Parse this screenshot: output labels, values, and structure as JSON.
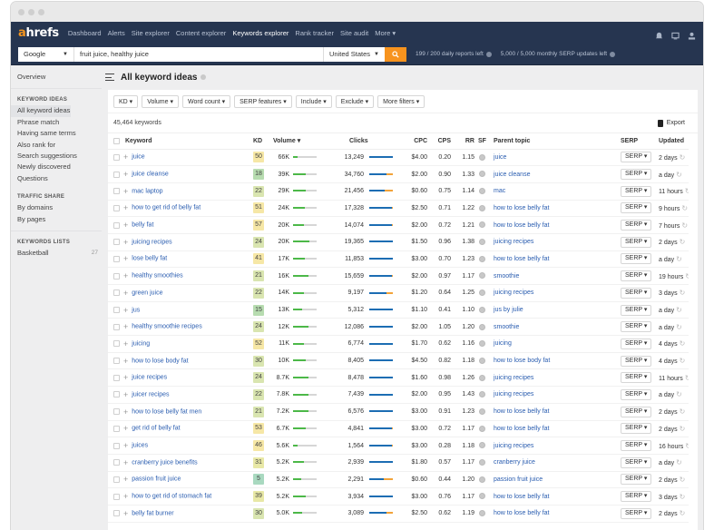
{
  "nav": {
    "logo_accent": "a",
    "logo_rest": "hrefs",
    "items": [
      {
        "label": "Dashboard",
        "active": false
      },
      {
        "label": "Alerts",
        "active": false
      },
      {
        "label": "Site explorer",
        "active": false
      },
      {
        "label": "Content explorer",
        "active": false
      },
      {
        "label": "Keywords explorer",
        "active": true
      },
      {
        "label": "Rank tracker",
        "active": false
      },
      {
        "label": "Site audit",
        "active": false
      },
      {
        "label": "More ▾",
        "active": false
      }
    ],
    "icons": [
      "bell-icon",
      "monitor-icon",
      "user-icon"
    ]
  },
  "search": {
    "engine": "Google",
    "query": "fruit juice, healthy juice",
    "country": "United States",
    "quota_daily": "199 / 200 daily reports left",
    "quota_serp": "5,000 / 5,000 monthly SERP updates left"
  },
  "sidebar": {
    "overview": "Overview",
    "sections": [
      {
        "title": "KEYWORD IDEAS",
        "items": [
          "All keyword ideas",
          "Phrase match",
          "Having same terms",
          "Also rank for",
          "Search suggestions",
          "Newly discovered",
          "Questions"
        ]
      },
      {
        "title": "TRAFFIC SHARE",
        "items": [
          "By domains",
          "By pages"
        ]
      },
      {
        "title": "KEYWORDS LISTS",
        "items": [
          "Basketball"
        ],
        "counts": [
          "27"
        ]
      }
    ]
  },
  "main": {
    "title": "All keyword ideas",
    "filters": [
      "KD ▾",
      "Volume ▾",
      "Word count ▾",
      "SERP features ▾",
      "Include ▾",
      "Exclude ▾",
      "More filters ▾"
    ],
    "count": "45,464 keywords",
    "export": "Export",
    "columns": [
      "Keyword",
      "KD",
      "Volume ▾",
      "Clicks",
      "CPC",
      "CPS",
      "RR",
      "SF",
      "Parent topic",
      "SERP",
      "Updated"
    ],
    "serp_label": "SERP ▾",
    "colors": {
      "kd_green": "#bfe0b8",
      "kd_lightgreen": "#d9e5b0",
      "kd_yellow": "#f6e7a6",
      "kd_mint": "#a9d9c0",
      "volume_bar": "#4cb848",
      "clicks_bar": "#1c6db3",
      "paid_bar": "#f2a33a"
    },
    "rows": [
      {
        "keyword": "juice",
        "kd": "50",
        "kd_color": "#f6e7a6",
        "volume": "66K",
        "vol_pct": 20,
        "clicks": "13,249",
        "paid_pct": 0,
        "cpc": "$4.00",
        "cps": "0.20",
        "rr": "1.15",
        "parent": "juice",
        "updated": "2 days"
      },
      {
        "keyword": "juice cleanse",
        "kd": "18",
        "kd_color": "#b7dcb0",
        "volume": "39K",
        "vol_pct": 55,
        "clicks": "34,760",
        "paid_pct": 28,
        "cpc": "$2.00",
        "cps": "0.90",
        "rr": "1.33",
        "parent": "juice cleanse",
        "updated": "a day"
      },
      {
        "keyword": "mac laptop",
        "kd": "22",
        "kd_color": "#d9e5b0",
        "volume": "29K",
        "vol_pct": 55,
        "clicks": "21,456",
        "paid_pct": 35,
        "cpc": "$0.60",
        "cps": "0.75",
        "rr": "1.14",
        "parent": "mac",
        "updated": "11 hours"
      },
      {
        "keyword": "how to get rid of belly fat",
        "kd": "51",
        "kd_color": "#f6e7a6",
        "volume": "24K",
        "vol_pct": 50,
        "clicks": "17,328",
        "paid_pct": 4,
        "cpc": "$2.50",
        "cps": "0.71",
        "rr": "1.22",
        "parent": "how to lose belly fat",
        "updated": "9 hours"
      },
      {
        "keyword": "belly fat",
        "kd": "57",
        "kd_color": "#f6e7a6",
        "volume": "20K",
        "vol_pct": 45,
        "clicks": "14,074",
        "paid_pct": 4,
        "cpc": "$2.00",
        "cps": "0.72",
        "rr": "1.21",
        "parent": "how to lose belly fat",
        "updated": "7 hours"
      },
      {
        "keyword": "juicing recipes",
        "kd": "24",
        "kd_color": "#d9e5b0",
        "volume": "20K",
        "vol_pct": 70,
        "clicks": "19,365",
        "paid_pct": 0,
        "cpc": "$1.50",
        "cps": "0.96",
        "rr": "1.38",
        "parent": "juicing recipes",
        "updated": "2 days"
      },
      {
        "keyword": "lose belly fat",
        "kd": "41",
        "kd_color": "#f6e7a6",
        "volume": "17K",
        "vol_pct": 50,
        "clicks": "11,853",
        "paid_pct": 0,
        "cpc": "$3.00",
        "cps": "0.70",
        "rr": "1.23",
        "parent": "how to lose belly fat",
        "updated": "a day"
      },
      {
        "keyword": "healthy smoothies",
        "kd": "21",
        "kd_color": "#d9e5b0",
        "volume": "16K",
        "vol_pct": 65,
        "clicks": "15,659",
        "paid_pct": 4,
        "cpc": "$2.00",
        "cps": "0.97",
        "rr": "1.17",
        "parent": "smoothie",
        "updated": "19 hours"
      },
      {
        "keyword": "green juice",
        "kd": "22",
        "kd_color": "#d9e5b0",
        "volume": "14K",
        "vol_pct": 45,
        "clicks": "9,197",
        "paid_pct": 28,
        "cpc": "$1.20",
        "cps": "0.64",
        "rr": "1.25",
        "parent": "juicing recipes",
        "updated": "3 days"
      },
      {
        "keyword": "jus",
        "kd": "15",
        "kd_color": "#b7dcb0",
        "volume": "13K",
        "vol_pct": 40,
        "clicks": "5,312",
        "paid_pct": 0,
        "cpc": "$1.10",
        "cps": "0.41",
        "rr": "1.10",
        "parent": "jus by julie",
        "updated": "a day"
      },
      {
        "keyword": "healthy smoothie recipes",
        "kd": "24",
        "kd_color": "#d9e5b0",
        "volume": "12K",
        "vol_pct": 65,
        "clicks": "12,086",
        "paid_pct": 0,
        "cpc": "$2.00",
        "cps": "1.05",
        "rr": "1.20",
        "parent": "smoothie",
        "updated": "a day"
      },
      {
        "keyword": "juicing",
        "kd": "52",
        "kd_color": "#f6e7a6",
        "volume": "11K",
        "vol_pct": 45,
        "clicks": "6,774",
        "paid_pct": 0,
        "cpc": "$1.70",
        "cps": "0.62",
        "rr": "1.16",
        "parent": "juicing",
        "updated": "4 days"
      },
      {
        "keyword": "how to lose body fat",
        "kd": "30",
        "kd_color": "#d9e5b0",
        "volume": "10K",
        "vol_pct": 55,
        "clicks": "8,405",
        "paid_pct": 0,
        "cpc": "$4.50",
        "cps": "0.82",
        "rr": "1.18",
        "parent": "how to lose body fat",
        "updated": "4 days"
      },
      {
        "keyword": "juice recipes",
        "kd": "24",
        "kd_color": "#d9e5b0",
        "volume": "8.7K",
        "vol_pct": 65,
        "clicks": "8,478",
        "paid_pct": 0,
        "cpc": "$1.60",
        "cps": "0.98",
        "rr": "1.26",
        "parent": "juicing recipes",
        "updated": "11 hours"
      },
      {
        "keyword": "juicer recipes",
        "kd": "22",
        "kd_color": "#d9e5b0",
        "volume": "7.8K",
        "vol_pct": 65,
        "clicks": "7,439",
        "paid_pct": 0,
        "cpc": "$2.00",
        "cps": "0.95",
        "rr": "1.43",
        "parent": "juicing recipes",
        "updated": "a day"
      },
      {
        "keyword": "how to lose belly fat men",
        "kd": "21",
        "kd_color": "#d9e5b0",
        "volume": "7.2K",
        "vol_pct": 65,
        "clicks": "6,576",
        "paid_pct": 0,
        "cpc": "$3.00",
        "cps": "0.91",
        "rr": "1.23",
        "parent": "how to lose belly fat",
        "updated": "2 days"
      },
      {
        "keyword": "get rid of belly fat",
        "kd": "53",
        "kd_color": "#f6e7a6",
        "volume": "6.7K",
        "vol_pct": 55,
        "clicks": "4,841",
        "paid_pct": 4,
        "cpc": "$3.00",
        "cps": "0.72",
        "rr": "1.17",
        "parent": "how to lose belly fat",
        "updated": "2 days"
      },
      {
        "keyword": "juices",
        "kd": "46",
        "kd_color": "#f6e7a6",
        "volume": "5.6K",
        "vol_pct": 20,
        "clicks": "1,564",
        "paid_pct": 4,
        "cpc": "$3.00",
        "cps": "0.28",
        "rr": "1.18",
        "parent": "juicing recipes",
        "updated": "16 hours"
      },
      {
        "keyword": "cranberry juice benefits",
        "kd": "31",
        "kd_color": "#e8e8a6",
        "volume": "5.2K",
        "vol_pct": 45,
        "clicks": "2,939",
        "paid_pct": 0,
        "cpc": "$1.80",
        "cps": "0.57",
        "rr": "1.17",
        "parent": "cranberry juice",
        "updated": "a day"
      },
      {
        "keyword": "passion fruit juice",
        "kd": "5",
        "kd_color": "#a9d9c0",
        "volume": "5.2K",
        "vol_pct": 35,
        "clicks": "2,291",
        "paid_pct": 40,
        "cpc": "$0.60",
        "cps": "0.44",
        "rr": "1.20",
        "parent": "passion fruit juice",
        "updated": "2 days"
      },
      {
        "keyword": "how to get rid of stomach fat",
        "kd": "39",
        "kd_color": "#e8e8a6",
        "volume": "5.2K",
        "vol_pct": 55,
        "clicks": "3,934",
        "paid_pct": 0,
        "cpc": "$3.00",
        "cps": "0.76",
        "rr": "1.17",
        "parent": "how to lose belly fat",
        "updated": "3 days"
      },
      {
        "keyword": "belly fat burner",
        "kd": "30",
        "kd_color": "#d9e5b0",
        "volume": "5.0K",
        "vol_pct": 40,
        "clicks": "3,089",
        "paid_pct": 28,
        "cpc": "$2.50",
        "cps": "0.62",
        "rr": "1.19",
        "parent": "how to lose belly fat",
        "updated": "2 days"
      }
    ]
  }
}
